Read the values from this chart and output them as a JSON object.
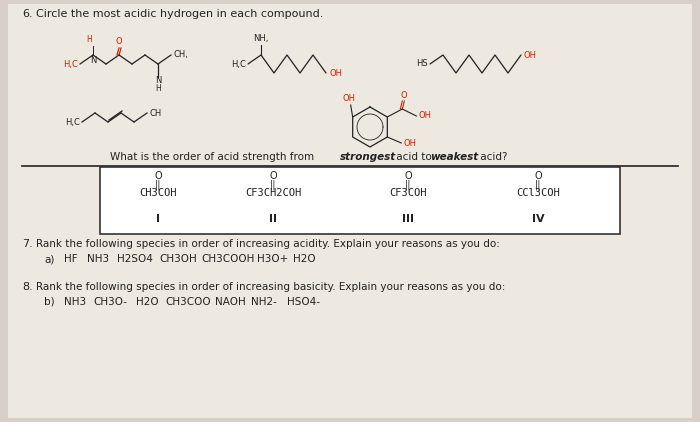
{
  "background_color": "#d8d0c8",
  "page_background": "#ede8e0",
  "dark_color": "#222222",
  "red_color": "#cc2200",
  "box_border": "#333333",
  "compounds": [
    {
      "formula": "CH3COH",
      "label": "I"
    },
    {
      "formula": "CF3CH2COH",
      "label": "II"
    },
    {
      "formula": "CF3COH",
      "label": "III"
    },
    {
      "formula": "CCl3COH",
      "label": "IV"
    }
  ],
  "question7_text": "Rank the following species in order of increasing acidity. Explain your reasons as you do:",
  "question7a_items": [
    "HF",
    "NH3",
    "H2SO4",
    "CH3OH",
    "CH3COOH",
    "H3O+",
    "H2O"
  ],
  "question8_text": "Rank the following species in order of increasing basicity. Explain your reasons as you do:",
  "question8b_items": [
    "NH3",
    "CH3O-",
    "H2O",
    "CH3COO",
    "NAOH",
    "NH2-",
    "HSO4-"
  ]
}
